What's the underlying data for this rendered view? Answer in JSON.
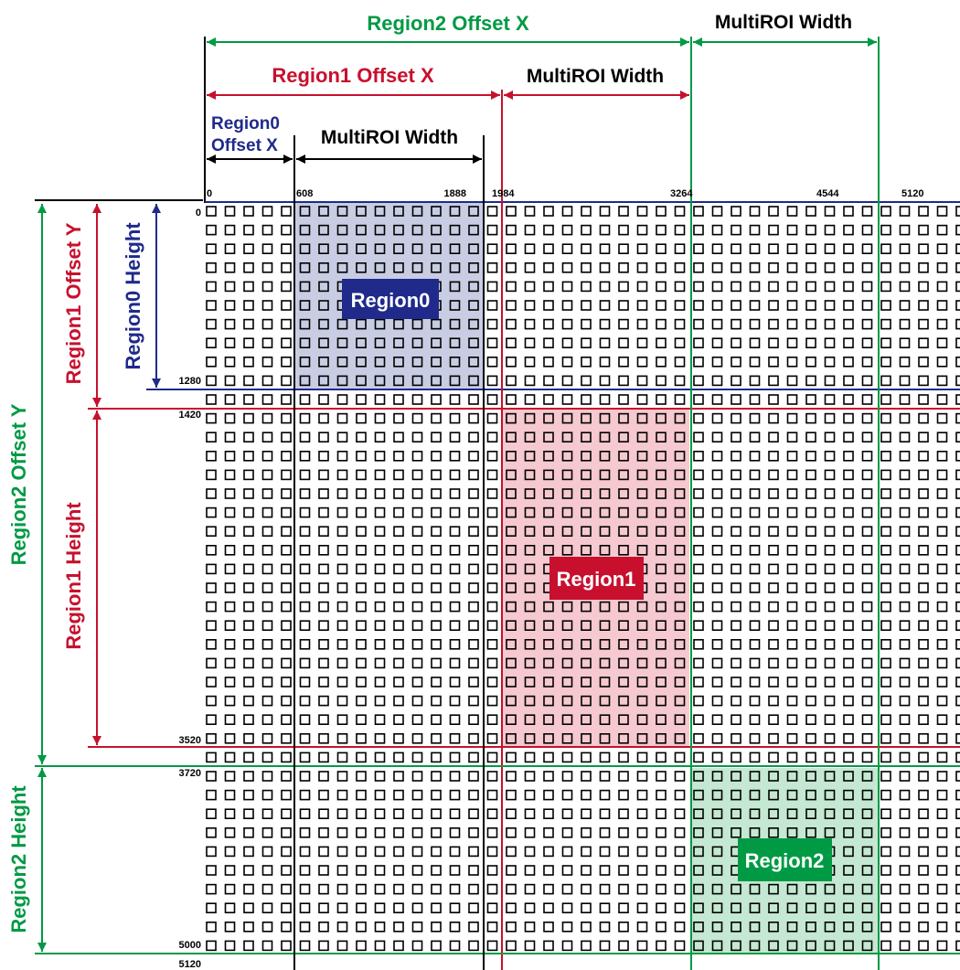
{
  "colors": {
    "region0": "#1f2a8a",
    "region1": "#c8102e",
    "region2": "#009a44",
    "black": "#000000",
    "region0_fill": "#c9cde3",
    "region1_fill": "#f5c9cf",
    "region2_fill": "#c5e8d2"
  },
  "labels": {
    "region2_offset_x": "Region2 Offset X",
    "region1_offset_x": "Region1 Offset X",
    "region0_offset_x_line1": "Region0",
    "region0_offset_x_line2": "Offset X",
    "multiroi_width": "MultiROI Width",
    "region0_height": "Region0 Height",
    "region1_offset_y": "Region1 Offset Y",
    "region2_offset_y": "Region2 Offset Y",
    "region1_height": "Region1 Height",
    "region2_height": "Region2 Height"
  },
  "regions": [
    {
      "name": "Region0"
    },
    {
      "name": "Region1"
    },
    {
      "name": "Region2"
    }
  ],
  "x_ticks": [
    "0",
    "608",
    "1888",
    "1984",
    "3264",
    "4544",
    "5120"
  ],
  "y_ticks": [
    "0",
    "1280",
    "1420",
    "3520",
    "3720",
    "5000",
    "5120"
  ]
}
